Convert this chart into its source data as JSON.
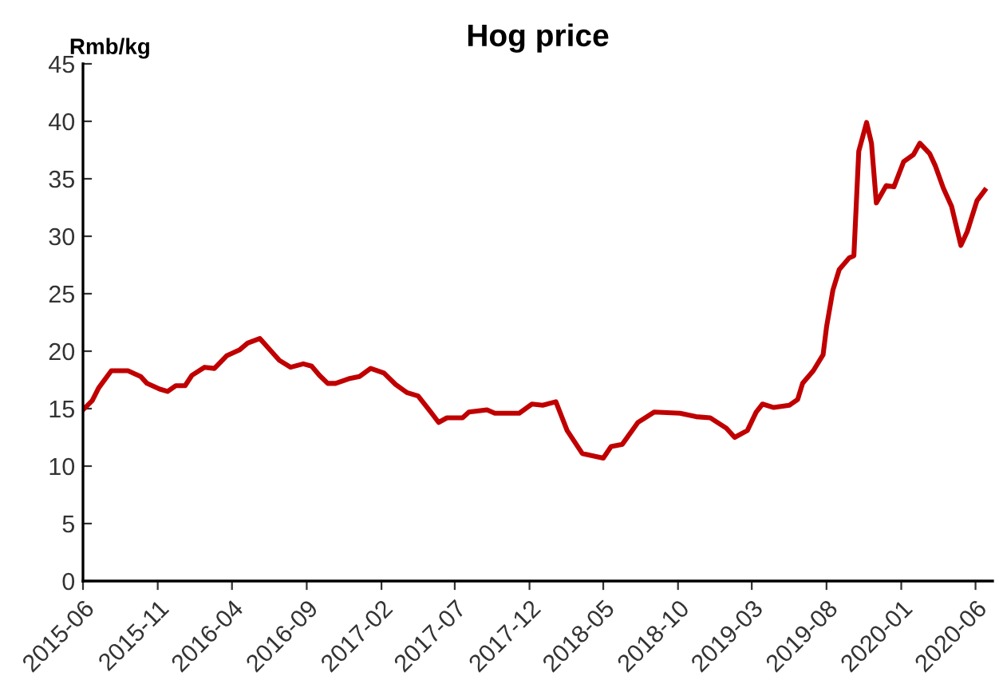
{
  "chart_data": {
    "type": "line",
    "title": "Hog price",
    "ylabel": "Rmb/kg",
    "x": [
      "2015-06-01",
      "2015-06-20",
      "2015-07-03",
      "2015-07-29",
      "2015-09-01",
      "2015-09-27",
      "2015-10-10",
      "2015-11-05",
      "2015-11-21",
      "2015-12-08",
      "2015-12-27",
      "2016-01-10",
      "2016-02-05",
      "2016-02-25",
      "2016-03-21",
      "2016-04-16",
      "2016-05-03",
      "2016-05-28",
      "2016-06-14",
      "2016-07-07",
      "2016-07-30",
      "2016-08-25",
      "2016-09-11",
      "2016-09-27",
      "2016-10-14",
      "2016-10-30",
      "2016-11-26",
      "2016-12-18",
      "2017-01-10",
      "2017-02-06",
      "2017-03-02",
      "2017-03-25",
      "2017-04-17",
      "2017-05-13",
      "2017-05-29",
      "2017-06-15",
      "2017-07-17",
      "2017-07-30",
      "2017-09-05",
      "2017-09-21",
      "2017-11-10",
      "2017-12-06",
      "2017-12-28",
      "2018-01-24",
      "2018-02-16",
      "2018-03-19",
      "2018-05-01",
      "2018-05-17",
      "2018-06-09",
      "2018-07-11",
      "2018-08-13",
      "2018-10-05",
      "2018-11-07",
      "2018-12-06",
      "2019-01-08",
      "2019-01-25",
      "2019-02-20",
      "2019-03-10",
      "2019-03-23",
      "2019-04-15",
      "2019-05-17",
      "2019-06-03",
      "2019-06-13",
      "2019-07-05",
      "2019-07-25",
      "2019-08-01",
      "2019-08-14",
      "2019-08-27",
      "2019-09-16",
      "2019-09-26",
      "2019-10-06",
      "2019-10-22",
      "2019-11-01",
      "2019-11-11",
      "2019-12-01",
      "2019-12-17",
      "2020-01-06",
      "2020-01-26",
      "2020-02-08",
      "2020-02-28",
      "2020-03-11",
      "2020-03-27",
      "2020-04-13",
      "2020-05-02",
      "2020-05-15",
      "2020-06-04",
      "2020-06-20"
    ],
    "series": [
      {
        "color": "#c00000",
        "values": [
          14.9,
          15.7,
          16.8,
          18.3,
          18.3,
          17.8,
          17.2,
          16.7,
          16.5,
          17.0,
          17.0,
          17.9,
          18.6,
          18.5,
          19.6,
          20.1,
          20.7,
          21.1,
          20.3,
          19.2,
          18.6,
          18.9,
          18.7,
          17.9,
          17.2,
          17.2,
          17.6,
          17.8,
          18.5,
          18.1,
          17.1,
          16.4,
          16.1,
          14.7,
          13.8,
          14.2,
          14.2,
          14.7,
          14.9,
          14.6,
          14.6,
          15.4,
          15.3,
          15.6,
          13.1,
          11.1,
          10.7,
          11.7,
          11.9,
          13.8,
          14.7,
          14.6,
          14.3,
          14.2,
          13.3,
          12.5,
          13.1,
          14.7,
          15.4,
          15.1,
          15.3,
          15.8,
          17.2,
          18.3,
          19.7,
          22.1,
          25.3,
          27.1,
          28.1,
          28.3,
          37.4,
          39.9,
          38.1,
          32.9,
          34.4,
          34.3,
          36.5,
          37.1,
          38.1,
          37.2,
          36.1,
          34.2,
          32.6,
          29.2,
          30.4,
          33.1,
          34.0
        ]
      }
    ],
    "xlim": [
      "2015-06-01",
      "2020-07-06"
    ],
    "xticks": [
      {
        "value": "2015-06-01",
        "label": "2015-06"
      },
      {
        "value": "2015-11-01",
        "label": "2015-11"
      },
      {
        "value": "2016-04-01",
        "label": "2016-04"
      },
      {
        "value": "2016-09-01",
        "label": "2016-09"
      },
      {
        "value": "2017-02-01",
        "label": "2017-02"
      },
      {
        "value": "2017-07-01",
        "label": "2017-07"
      },
      {
        "value": "2017-12-01",
        "label": "2017-12"
      },
      {
        "value": "2018-05-01",
        "label": "2018-05"
      },
      {
        "value": "2018-10-01",
        "label": "2018-10"
      },
      {
        "value": "2019-03-01",
        "label": "2019-03"
      },
      {
        "value": "2019-08-01",
        "label": "2019-08"
      },
      {
        "value": "2020-01-01",
        "label": "2020-01"
      },
      {
        "value": "2020-06-01",
        "label": "2020-06"
      }
    ],
    "ylim": [
      0,
      45
    ],
    "yticks": [
      0,
      5,
      10,
      15,
      20,
      25,
      30,
      35,
      40,
      45
    ],
    "grid": false,
    "line_style": "solid",
    "marker": "none"
  }
}
